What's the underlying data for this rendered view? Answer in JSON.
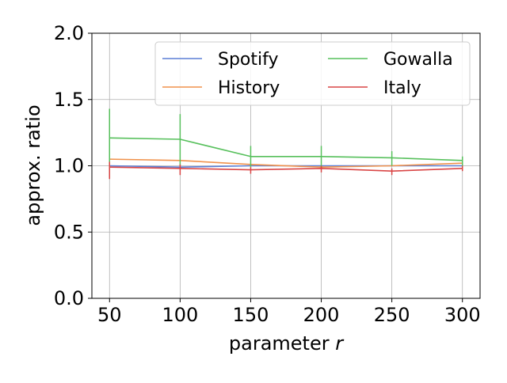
{
  "chart_data": {
    "type": "line",
    "xlabel": "parameter",
    "xlabel_var": "r",
    "ylabel": "approx. ratio",
    "x": [
      50,
      100,
      150,
      200,
      250,
      300
    ],
    "xticks": [
      "50",
      "100",
      "150",
      "200",
      "250",
      "300"
    ],
    "yticks": [
      "0.0",
      "0.5",
      "1.0",
      "1.5",
      "2.0"
    ],
    "xlim": [
      37.5,
      312.5
    ],
    "ylim": [
      0.0,
      2.0
    ],
    "grid": true,
    "legend_position": "top-right",
    "legend_columns": 2,
    "series": [
      {
        "name": "Spotify",
        "color": "#5b7fd6",
        "values": [
          1.0,
          0.99,
          1.0,
          1.0,
          1.0,
          1.0
        ],
        "err_low": [
          0.0,
          0.0,
          0.0,
          0.0,
          0.0,
          0.0
        ],
        "err_high": [
          0.0,
          0.0,
          0.0,
          0.0,
          0.0,
          0.0
        ]
      },
      {
        "name": "History",
        "color": "#f0924c",
        "values": [
          1.05,
          1.04,
          1.01,
          0.99,
          1.0,
          1.02
        ],
        "err_low": [
          0.0,
          0.0,
          0.0,
          0.0,
          0.0,
          0.0
        ],
        "err_high": [
          0.0,
          0.0,
          0.0,
          0.0,
          0.0,
          0.0
        ]
      },
      {
        "name": "Gowalla",
        "color": "#57c05c",
        "values": [
          1.21,
          1.2,
          1.07,
          1.07,
          1.06,
          1.04
        ],
        "err_low": [
          0.3,
          0.2,
          0.08,
          0.08,
          0.06,
          0.04
        ],
        "err_high": [
          0.22,
          0.19,
          0.08,
          0.08,
          0.05,
          0.03
        ]
      },
      {
        "name": "Italy",
        "color": "#d94545",
        "values": [
          0.99,
          0.98,
          0.97,
          0.98,
          0.96,
          0.98
        ],
        "err_low": [
          0.09,
          0.05,
          0.03,
          0.03,
          0.03,
          0.02
        ],
        "err_high": [
          0.04,
          0.03,
          0.02,
          0.02,
          0.02,
          0.02
        ]
      }
    ]
  }
}
